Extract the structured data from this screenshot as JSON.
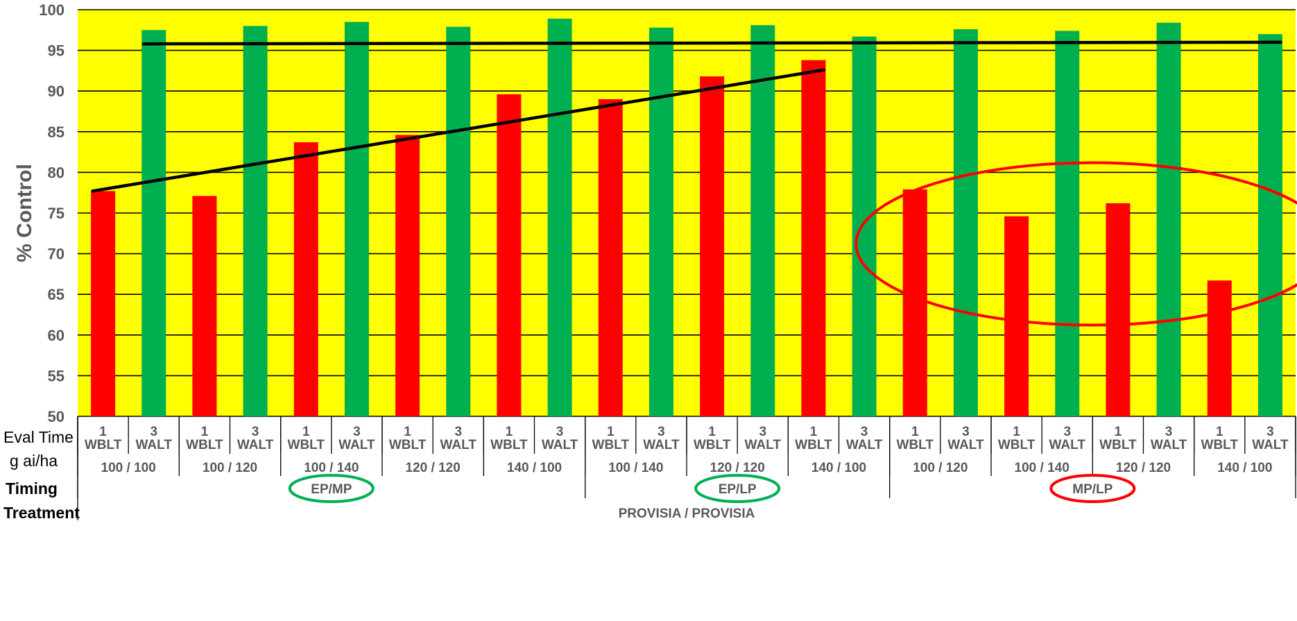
{
  "chart_data": {
    "type": "bar",
    "ylabel": "% Control",
    "ylim": [
      50,
      100
    ],
    "yticks": [
      50,
      55,
      60,
      65,
      70,
      75,
      80,
      85,
      90,
      95,
      100
    ],
    "grid": true,
    "colors": {
      "plot_bg": "#ffff00",
      "wblt": "#ff0000",
      "walt": "#00b050",
      "trend": "#000000",
      "highlight_good": "#00b050",
      "highlight_bad": "#ff0000"
    },
    "row_labels": {
      "eval_time": "Eval Time",
      "rate": "g ai/ha",
      "timing": "Timing",
      "treatment": "Treatment"
    },
    "eval_labels": [
      {
        "line1": "1",
        "line2": "WBLT"
      },
      {
        "line1": "3",
        "line2": "WALT"
      }
    ],
    "bars": [
      {
        "eval": 0,
        "value": 77.7
      },
      {
        "eval": 1,
        "value": 97.5
      },
      {
        "eval": 0,
        "value": 77.1
      },
      {
        "eval": 1,
        "value": 98.0
      },
      {
        "eval": 0,
        "value": 83.7
      },
      {
        "eval": 1,
        "value": 98.5
      },
      {
        "eval": 0,
        "value": 84.6
      },
      {
        "eval": 1,
        "value": 97.9
      },
      {
        "eval": 0,
        "value": 89.6
      },
      {
        "eval": 1,
        "value": 98.9
      },
      {
        "eval": 0,
        "value": 89.0
      },
      {
        "eval": 1,
        "value": 97.8
      },
      {
        "eval": 0,
        "value": 91.8
      },
      {
        "eval": 1,
        "value": 98.1
      },
      {
        "eval": 0,
        "value": 93.8
      },
      {
        "eval": 1,
        "value": 96.7
      },
      {
        "eval": 0,
        "value": 77.9
      },
      {
        "eval": 1,
        "value": 97.6
      },
      {
        "eval": 0,
        "value": 74.6
      },
      {
        "eval": 1,
        "value": 97.4
      },
      {
        "eval": 0,
        "value": 76.2
      },
      {
        "eval": 1,
        "value": 98.4
      },
      {
        "eval": 0,
        "value": 66.7
      },
      {
        "eval": 1,
        "value": 97.0
      }
    ],
    "rates": [
      "100 / 100",
      "100 / 120",
      "100 / 140",
      "120 / 120",
      "140 / 100",
      "100 / 140",
      "120 / 120",
      "140 / 100",
      "100 / 120",
      "100 / 140",
      "120 / 120",
      "140 / 100"
    ],
    "timings": [
      {
        "label": "EP/MP",
        "start": 0,
        "count": 5,
        "highlight": "good"
      },
      {
        "label": "EP/LP",
        "start": 5,
        "count": 3,
        "highlight": "good"
      },
      {
        "label": "MP/LP",
        "start": 8,
        "count": 4,
        "highlight": "bad"
      }
    ],
    "treatment": "PROVISIA / PROVISIA",
    "trend_lines": [
      {
        "from_bar": 0,
        "to_bar": 14,
        "y_start": 77.7,
        "y_end": 92.6
      },
      {
        "from_bar": 1,
        "to_bar": 23,
        "y_start": 95.8,
        "y_end": 96.0
      }
    ],
    "annotation": {
      "type": "ellipse",
      "color": "#ff0000",
      "around_bars": [
        16,
        23
      ],
      "y_center": 71.2
    }
  }
}
